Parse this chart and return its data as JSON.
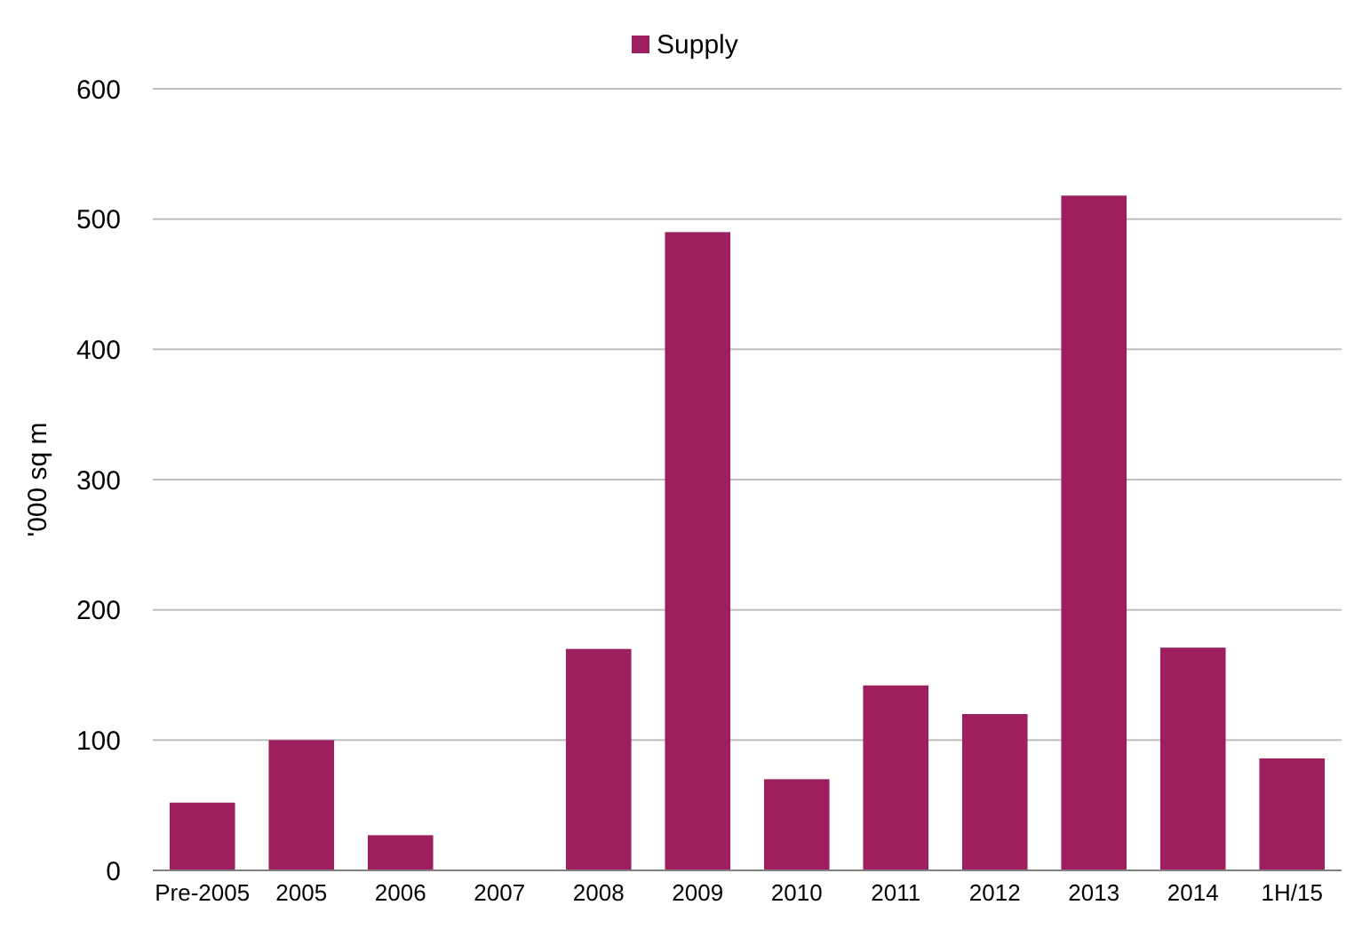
{
  "chart_data": {
    "type": "bar",
    "ylabel": "'000 sq m",
    "categories": [
      "Pre-2005",
      "2005",
      "2006",
      "2007",
      "2008",
      "2009",
      "2010",
      "2011",
      "2012",
      "2013",
      "2014",
      "1H/15"
    ],
    "series": [
      {
        "name": "Supply",
        "color": "#9e1f5d",
        "values": [
          52,
          100,
          27,
          0,
          170,
          490,
          70,
          142,
          120,
          518,
          171,
          86
        ]
      }
    ],
    "ylim": [
      0,
      600
    ],
    "yticks": [
      0,
      100,
      200,
      300,
      400,
      500,
      600
    ],
    "grid": "y",
    "legend": "top"
  }
}
